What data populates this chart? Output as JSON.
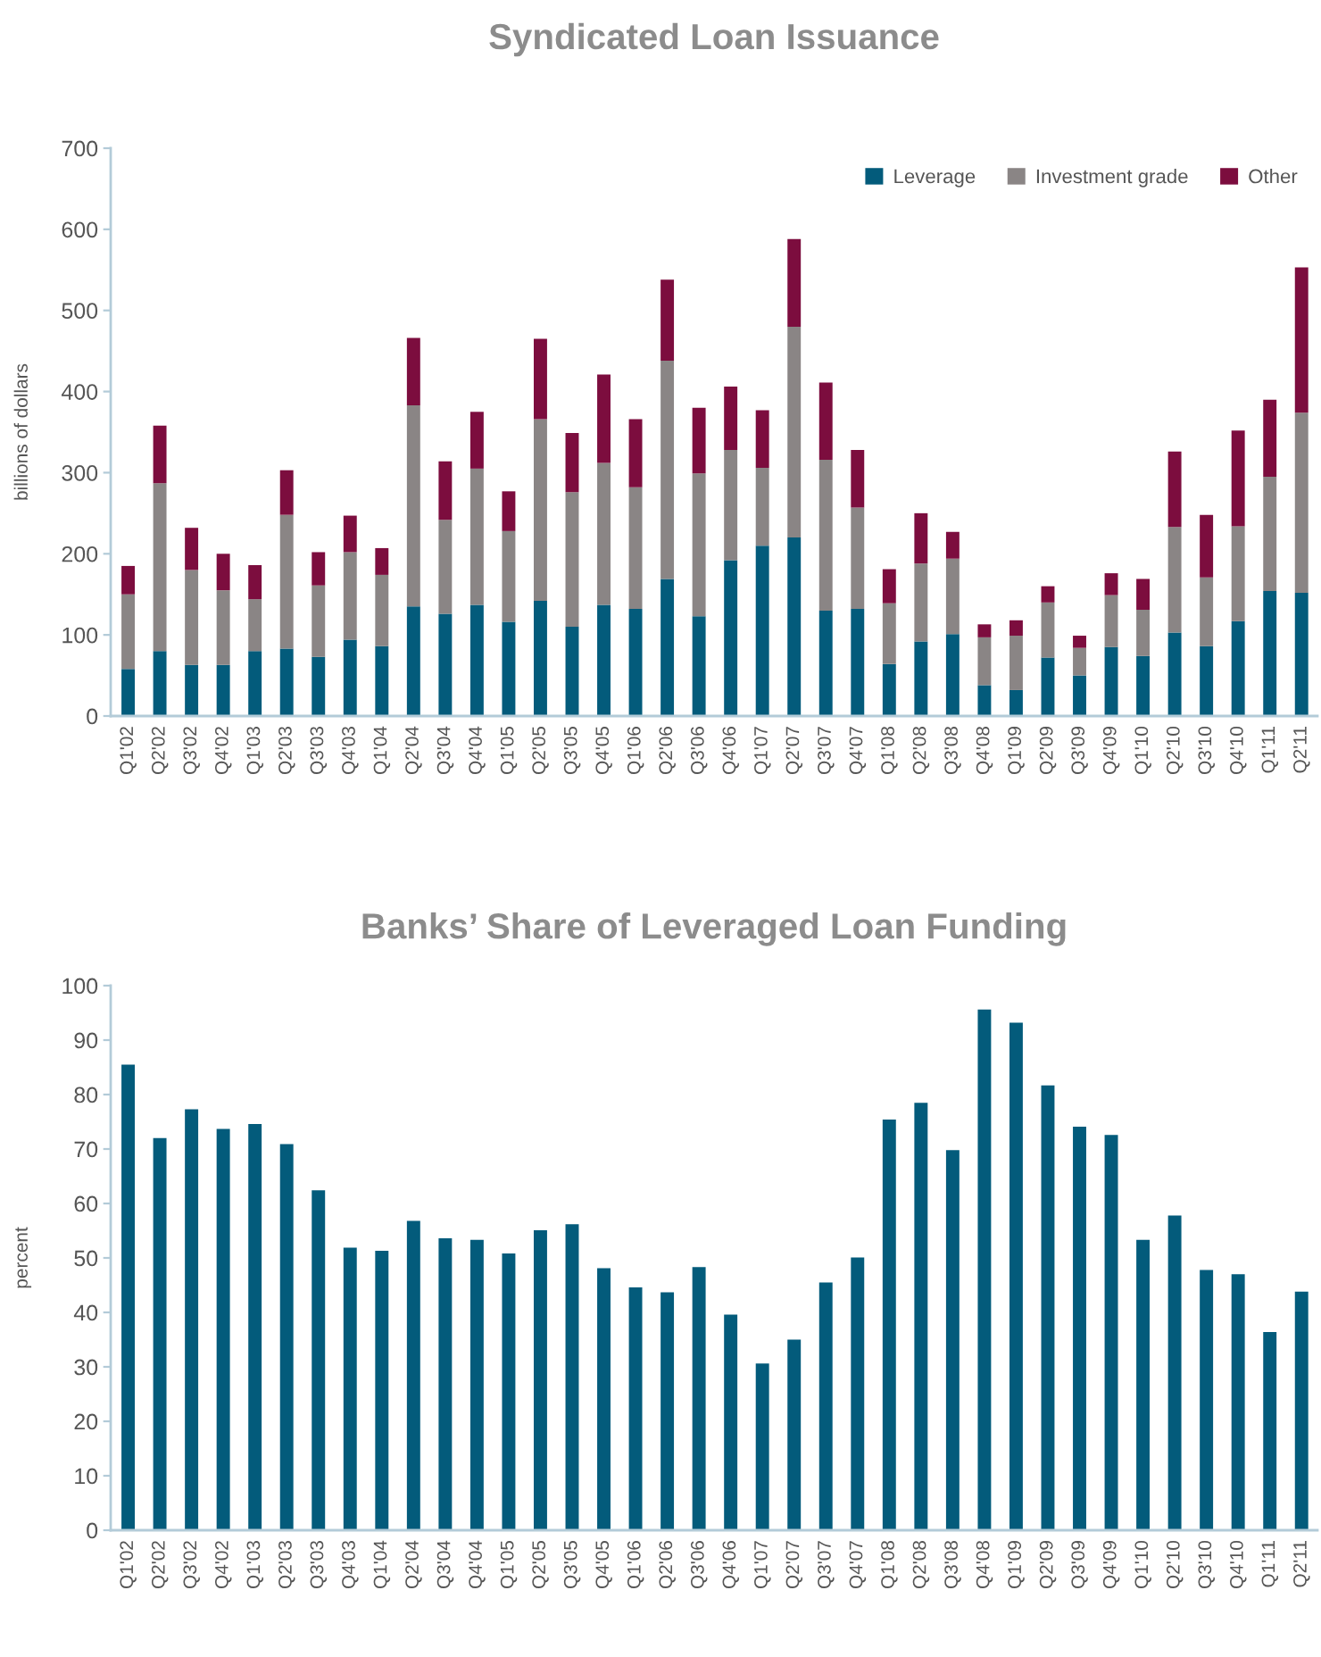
{
  "chart_data": [
    {
      "type": "bar",
      "stacked": true,
      "title": "Syndicated Loan Issuance",
      "ylabel": "billions of dollars",
      "categories": [
        "Q1'02",
        "Q2'02",
        "Q3'02",
        "Q4'02",
        "Q1'03",
        "Q2'03",
        "Q3'03",
        "Q4'03",
        "Q1'04",
        "Q2'04",
        "Q3'04",
        "Q4'04",
        "Q1'05",
        "Q2'05",
        "Q3'05",
        "Q4'05",
        "Q1'06",
        "Q2'06",
        "Q3'06",
        "Q4'06",
        "Q1'07",
        "Q2'07",
        "Q3'07",
        "Q4'07",
        "Q1'08",
        "Q2'08",
        "Q3'08",
        "Q4'08",
        "Q1'09",
        "Q2'09",
        "Q3'09",
        "Q4'09",
        "Q1'10",
        "Q2'10",
        "Q3'10",
        "Q4'10",
        "Q1'11",
        "Q2'11"
      ],
      "series": [
        {
          "name": "Leverage",
          "color": "#035b7b",
          "values": [
            58,
            80,
            63,
            63,
            80,
            83,
            73,
            94,
            86,
            135,
            126,
            137,
            116,
            142,
            110,
            137,
            132,
            169,
            123,
            192,
            210,
            220,
            130,
            132,
            64,
            92,
            101,
            38,
            32,
            72,
            50,
            85,
            74,
            103,
            86,
            117,
            154,
            152
          ]
        },
        {
          "name": "Investment grade",
          "color": "#8a8585",
          "values": [
            92,
            207,
            117,
            92,
            64,
            165,
            88,
            108,
            88,
            248,
            116,
            168,
            112,
            224,
            166,
            175,
            150,
            269,
            176,
            136,
            96,
            260,
            186,
            125,
            75,
            96,
            93,
            59,
            67,
            68,
            34,
            64,
            57,
            130,
            85,
            117,
            141,
            222
          ]
        },
        {
          "name": "Other",
          "color": "#7c0d3e",
          "values": [
            35,
            71,
            52,
            45,
            42,
            55,
            41,
            45,
            33,
            83,
            72,
            70,
            49,
            99,
            73,
            109,
            84,
            100,
            81,
            78,
            71,
            108,
            95,
            71,
            42,
            62,
            33,
            16,
            19,
            20,
            15,
            27,
            38,
            93,
            77,
            118,
            95,
            179
          ]
        }
      ],
      "ylim": [
        0,
        700
      ],
      "yticks": [
        0,
        100,
        200,
        300,
        400,
        500,
        600,
        700
      ],
      "grid": false,
      "legend": "top right"
    },
    {
      "type": "bar",
      "title": "Banks’ Share of Leveraged Loan Funding",
      "ylabel": "percent",
      "categories": [
        "Q1'02",
        "Q2'02",
        "Q3'02",
        "Q4'02",
        "Q1'03",
        "Q2'03",
        "Q3'03",
        "Q4'03",
        "Q1'04",
        "Q2'04",
        "Q3'04",
        "Q4'04",
        "Q1'05",
        "Q2'05",
        "Q3'05",
        "Q4'05",
        "Q1'06",
        "Q2'06",
        "Q3'06",
        "Q4'06",
        "Q1'07",
        "Q2'07",
        "Q3'07",
        "Q4'07",
        "Q1'08",
        "Q2'08",
        "Q3'08",
        "Q4'08",
        "Q1'09",
        "Q2'09",
        "Q3'09",
        "Q4'09",
        "Q1'10",
        "Q2'10",
        "Q3'10",
        "Q4'10",
        "Q1'11",
        "Q2'11"
      ],
      "series": [
        {
          "color": "#035b7b",
          "values": [
            85.5,
            72,
            77.3,
            73.7,
            74.6,
            70.9,
            62.4,
            51.9,
            51.3,
            56.8,
            53.6,
            53.3,
            50.8,
            55.1,
            56.2,
            48.1,
            44.6,
            43.7,
            48.3,
            39.6,
            30.6,
            35.0,
            45.5,
            50.1,
            75.4,
            78.5,
            69.8,
            95.6,
            93.2,
            81.7,
            74.1,
            72.6,
            53.3,
            57.8,
            47.8,
            47.0,
            36.4,
            43.8
          ]
        }
      ],
      "ylim": [
        0,
        100
      ],
      "yticks": [
        0,
        10,
        20,
        30,
        40,
        50,
        60,
        70,
        80,
        90,
        100
      ],
      "grid": false
    }
  ]
}
